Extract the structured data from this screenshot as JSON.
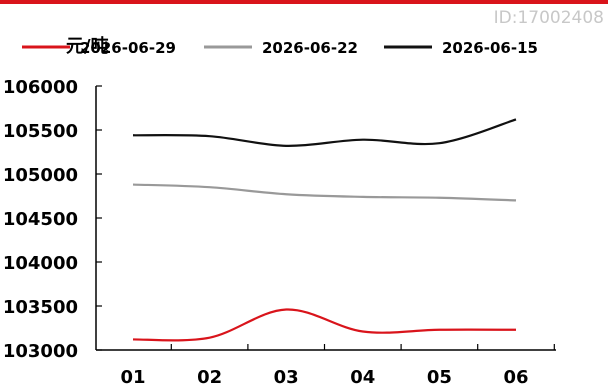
{
  "watermark": "ID:17002408",
  "accent_color": "#d9141b",
  "chart_data": {
    "type": "line",
    "ylabel": "元/吨",
    "categories": [
      "01",
      "02",
      "03",
      "04",
      "05",
      "06"
    ],
    "ylim": [
      103000,
      106000
    ],
    "yticks": [
      103000,
      103500,
      104000,
      104500,
      105000,
      105500,
      106000
    ],
    "legend_position": "top",
    "grid": false,
    "series": [
      {
        "name": "2026-06-29",
        "color": "#d9141b",
        "values": [
          103120,
          103140,
          103460,
          103210,
          103230,
          103230
        ]
      },
      {
        "name": "2026-06-22",
        "color": "#999999",
        "values": [
          104880,
          104850,
          104770,
          104740,
          104730,
          104700
        ]
      },
      {
        "name": "2026-06-15",
        "color": "#111111",
        "values": [
          105440,
          105430,
          105320,
          105390,
          105350,
          105620
        ]
      }
    ]
  }
}
